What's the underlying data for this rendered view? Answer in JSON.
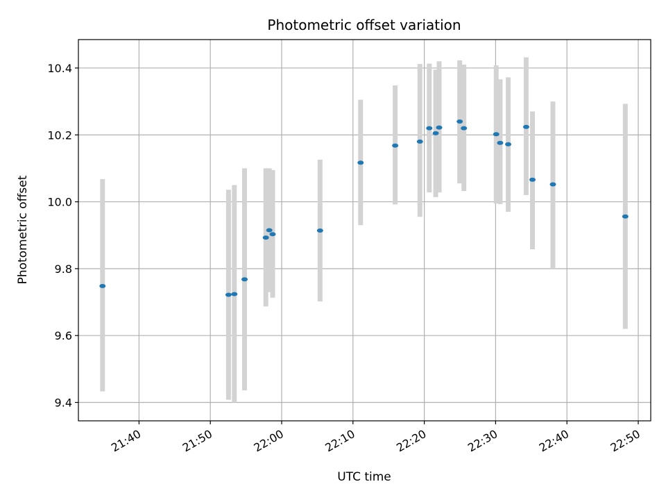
{
  "chart_data": {
    "type": "scatter",
    "title": "Photometric offset variation",
    "xlabel": "UTC time",
    "ylabel": "Photometric offset",
    "xlim": [
      "21:31:30",
      "22:51:45"
    ],
    "ylim": [
      9.345,
      10.485
    ],
    "grid": true,
    "x_ticks": [
      "21:40",
      "21:50",
      "22:00",
      "22:10",
      "22:20",
      "22:30",
      "22:40",
      "22:50"
    ],
    "y_ticks": [
      "9.4",
      "9.6",
      "9.8",
      "10.0",
      "10.2",
      "10.4"
    ],
    "points": [
      {
        "x": "21:34:53",
        "y": 9.748,
        "low": 9.433,
        "high": 10.068
      },
      {
        "x": "21:52:33",
        "y": 9.722,
        "low": 9.408,
        "high": 10.036
      },
      {
        "x": "21:53:22",
        "y": 9.724,
        "low": 9.4,
        "high": 10.05
      },
      {
        "x": "21:54:48",
        "y": 9.768,
        "low": 9.436,
        "high": 10.1
      },
      {
        "x": "21:57:47",
        "y": 9.893,
        "low": 9.687,
        "high": 10.1
      },
      {
        "x": "21:58:16",
        "y": 9.915,
        "low": 9.73,
        "high": 10.1
      },
      {
        "x": "21:58:44",
        "y": 9.903,
        "low": 9.713,
        "high": 10.095
      },
      {
        "x": "22:05:23",
        "y": 9.914,
        "low": 9.702,
        "high": 10.126
      },
      {
        "x": "22:11:04",
        "y": 10.117,
        "low": 9.93,
        "high": 10.305
      },
      {
        "x": "22:15:55",
        "y": 10.168,
        "low": 9.992,
        "high": 10.348
      },
      {
        "x": "22:19:23",
        "y": 10.18,
        "low": 9.955,
        "high": 10.412
      },
      {
        "x": "22:20:42",
        "y": 10.22,
        "low": 10.028,
        "high": 10.413
      },
      {
        "x": "22:21:36",
        "y": 10.205,
        "low": 10.014,
        "high": 10.395
      },
      {
        "x": "22:22:05",
        "y": 10.222,
        "low": 10.028,
        "high": 10.42
      },
      {
        "x": "22:24:58",
        "y": 10.24,
        "low": 10.055,
        "high": 10.423
      },
      {
        "x": "22:25:33",
        "y": 10.22,
        "low": 10.032,
        "high": 10.41
      },
      {
        "x": "22:30:05",
        "y": 10.202,
        "low": 9.995,
        "high": 10.408
      },
      {
        "x": "22:30:38",
        "y": 10.176,
        "low": 9.993,
        "high": 10.366
      },
      {
        "x": "22:31:46",
        "y": 10.172,
        "low": 9.97,
        "high": 10.372
      },
      {
        "x": "22:34:17",
        "y": 10.224,
        "low": 10.02,
        "high": 10.432
      },
      {
        "x": "22:35:10",
        "y": 10.066,
        "low": 9.858,
        "high": 10.27
      },
      {
        "x": "22:38:02",
        "y": 10.052,
        "low": 9.8,
        "high": 10.3
      },
      {
        "x": "22:48:11",
        "y": 9.956,
        "low": 9.62,
        "high": 10.293
      }
    ],
    "colors": {
      "point": "#1f77b4",
      "errorbar": "#d3d3d3",
      "grid": "#b0b0b0",
      "axes": "#000000"
    }
  }
}
